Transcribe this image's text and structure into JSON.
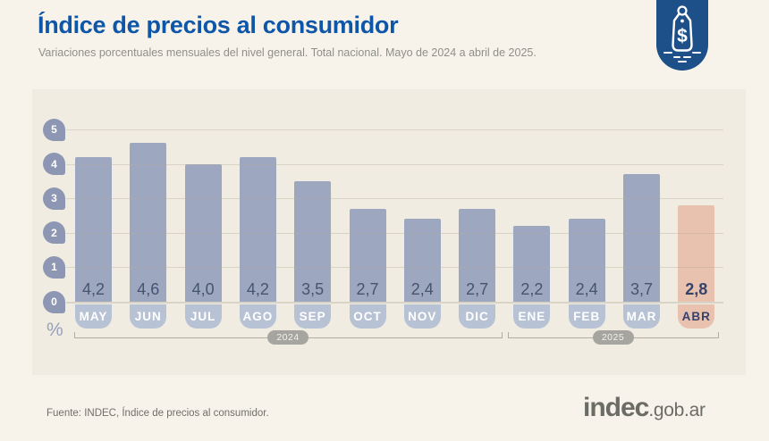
{
  "header": {
    "title": "Índice de precios al consumidor",
    "subtitle": "Variaciones porcentuales mensuales del nivel general. Total nacional. Mayo de 2024 a abril de 2025.",
    "badge": {
      "icon": "price-tag-icon",
      "symbol": "$"
    }
  },
  "chart_data": {
    "type": "bar",
    "categories": [
      "MAY",
      "JUN",
      "JUL",
      "AGO",
      "SEP",
      "OCT",
      "NOV",
      "DIC",
      "ENE",
      "FEB",
      "MAR",
      "ABR"
    ],
    "values": [
      4.2,
      4.6,
      4.0,
      4.2,
      3.5,
      2.7,
      2.4,
      2.7,
      2.2,
      2.4,
      3.7,
      2.8
    ],
    "value_labels": [
      "4,2",
      "4,6",
      "4,0",
      "4,2",
      "3,5",
      "2,7",
      "2,4",
      "2,7",
      "2,2",
      "2,4",
      "3,7",
      "2,8"
    ],
    "highlight_index": 11,
    "y_ticks": [
      "0",
      "1",
      "2",
      "3",
      "4",
      "5"
    ],
    "ylim": [
      0,
      5
    ],
    "ylabel": "%",
    "grid": true,
    "year_groups": [
      {
        "label": "2024",
        "start_index": 0,
        "end_index": 7
      },
      {
        "label": "2025",
        "start_index": 8,
        "end_index": 11
      }
    ],
    "colors": {
      "bar": "#9da8c0",
      "month_box": "#b8c2d5",
      "highlight_bar": "#e8c2ae",
      "value_text": "#47546f",
      "highlight_text": "#36426a",
      "tick_pin": "#8d97b3"
    }
  },
  "footer": {
    "source": "Fuente: INDEC, Índice de precios al consumidor.",
    "logo_primary": "indec",
    "logo_suffix": ".gob.ar"
  }
}
